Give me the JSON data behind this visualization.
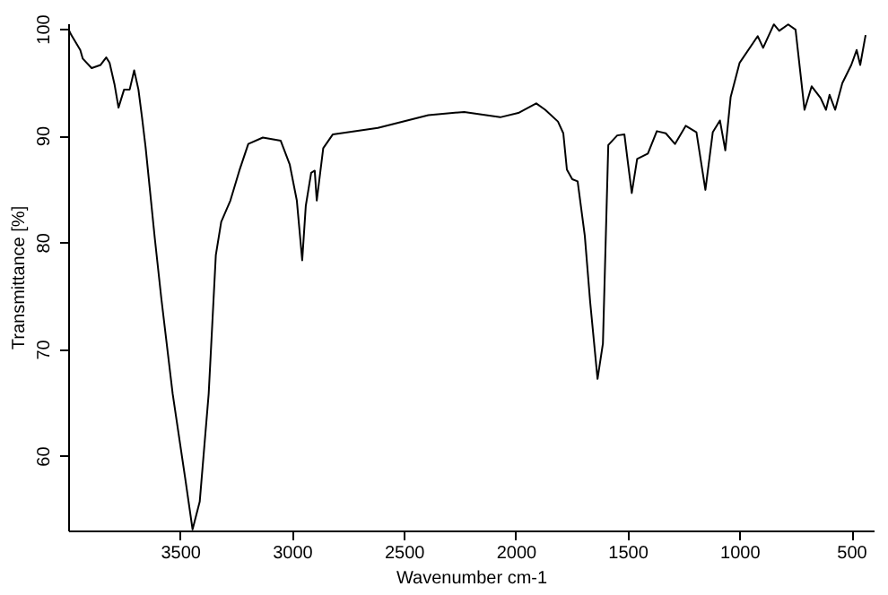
{
  "chart_data": {
    "type": "line",
    "xlabel": "Wavenumber cm-1",
    "ylabel": "Transmittance [%]",
    "xlim": [
      4000,
      400
    ],
    "ylim": [
      53,
      100.5
    ],
    "xticks": [
      3500,
      3000,
      2500,
      2000,
      1500,
      1000,
      500
    ],
    "yticks": [
      60,
      70,
      80,
      90,
      100
    ],
    "grid": false,
    "marker": "none",
    "line_style": "solid",
    "x": [
      4000,
      3986,
      3946,
      3935,
      3895,
      3855,
      3830,
      3815,
      3793,
      3775,
      3750,
      3725,
      3705,
      3686,
      3670,
      3654,
      3613,
      3584,
      3533,
      3477,
      3444,
      3412,
      3372,
      3340,
      3316,
      3275,
      3235,
      3195,
      3130,
      3050,
      3010,
      2978,
      2954,
      2938,
      2914,
      2898,
      2889,
      2860,
      2817,
      2616,
      2390,
      2230,
      2069,
      1988,
      1908,
      1868,
      1811,
      1787,
      1771,
      1747,
      1723,
      1691,
      1667,
      1634,
      1610,
      1586,
      1546,
      1514,
      1498,
      1481,
      1457,
      1409,
      1369,
      1329,
      1288,
      1240,
      1192,
      1152,
      1119,
      1087,
      1063,
      1039,
      999,
      918,
      894,
      846,
      822,
      782,
      749,
      709,
      677,
      637,
      613,
      597,
      572,
      540,
      500,
      476,
      460,
      436
    ],
    "series": [
      {
        "color": "#000000",
        "values": [
          100,
          99.4,
          98.0,
          97.2,
          96.3,
          96.6,
          97.3,
          96.8,
          94.8,
          92.6,
          94.3,
          94.3,
          96.1,
          94.3,
          91.7,
          88.9,
          80.4,
          74.8,
          65.8,
          57.9,
          53.1,
          55.7,
          65.8,
          78.8,
          81.9,
          83.9,
          86.7,
          89.2,
          89.8,
          89.5,
          87.3,
          83.9,
          78.3,
          83.4,
          86.5,
          86.7,
          83.9,
          88.8,
          90.1,
          90.7,
          91.9,
          92.2,
          91.7,
          92.1,
          93.0,
          92.4,
          91.3,
          90.2,
          86.8,
          85.9,
          85.7,
          80.6,
          74.4,
          67.2,
          70.5,
          89.1,
          90.0,
          90.1,
          87.4,
          84.6,
          87.8,
          88.3,
          90.4,
          90.2,
          89.2,
          90.9,
          90.3,
          84.9,
          90.3,
          91.4,
          88.6,
          93.6,
          96.8,
          99.3,
          98.2,
          100.4,
          99.8,
          100.4,
          99.9,
          92.4,
          94.6,
          93.5,
          92.4,
          93.8,
          92.4,
          94.9,
          96.6,
          98.0,
          96.6,
          99.4
        ]
      }
    ]
  }
}
